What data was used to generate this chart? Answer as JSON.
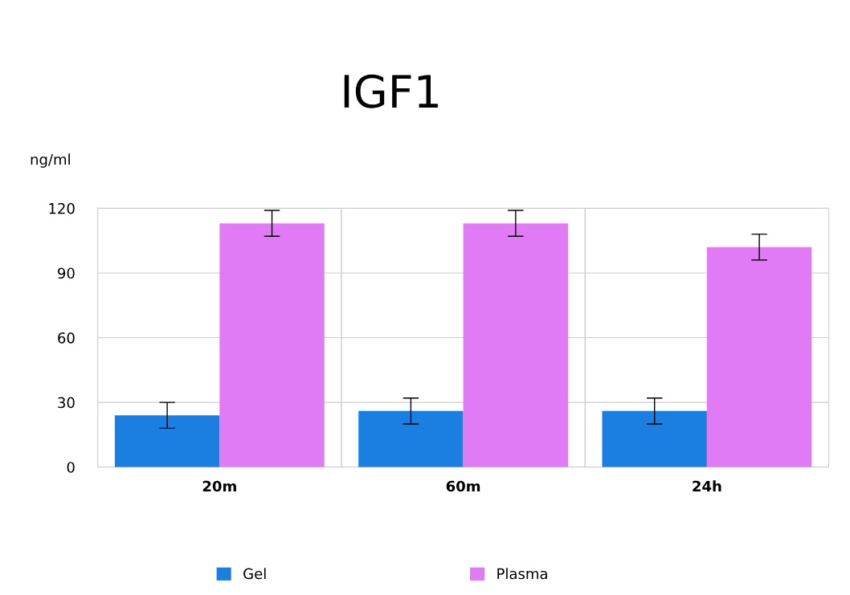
{
  "chart_data": {
    "type": "bar",
    "title": "IGF1",
    "ylabel": "ng/ml",
    "categories": [
      "20m",
      "60m",
      "24h"
    ],
    "series": [
      {
        "name": "Gel",
        "color": "#1a7fe0",
        "values": [
          24,
          26,
          26
        ],
        "errors": [
          6,
          6,
          6
        ]
      },
      {
        "name": "Plasma",
        "color": "#e07af5",
        "values": [
          113,
          113,
          102
        ],
        "errors": [
          6,
          6,
          6
        ]
      }
    ],
    "ylim": [
      0,
      120
    ],
    "yticks": [
      0,
      30,
      60,
      90,
      120
    ],
    "grid": "y",
    "legend": "bottom"
  }
}
